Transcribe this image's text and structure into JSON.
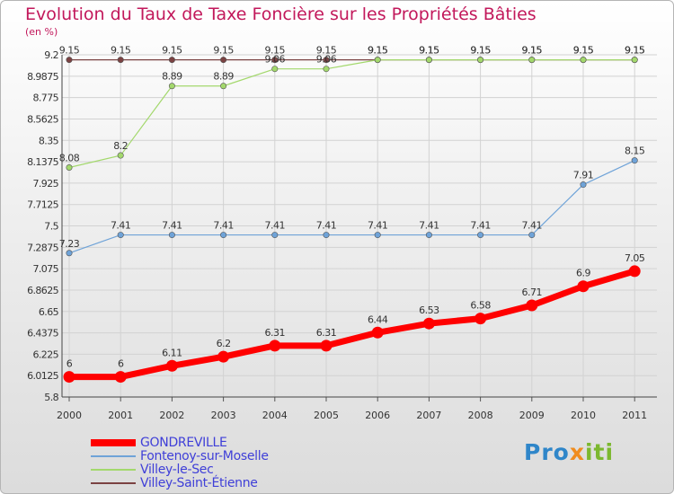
{
  "chart_data": {
    "type": "line",
    "title": "Evolution du Taux de Taxe Foncière sur les Propriétés Bâties",
    "ylabel": "(en %)",
    "xlabel": "",
    "ylim": [
      5.8,
      9.2
    ],
    "yticks": [
      "9.2",
      "8.9875",
      "8.775",
      "8.5625",
      "8.35",
      "8.1375",
      "7.925",
      "7.7125",
      "7.5",
      "7.2875",
      "7.075",
      "6.8625",
      "6.65",
      "6.4375",
      "6.225",
      "6.0125",
      "5.8"
    ],
    "categories": [
      "2000",
      "2001",
      "2002",
      "2003",
      "2004",
      "2005",
      "2006",
      "2007",
      "2008",
      "2009",
      "2010",
      "2011"
    ],
    "series": [
      {
        "name": "GONDREVILLE",
        "color": "#ff0000",
        "values": [
          6,
          6,
          6.11,
          6.2,
          6.31,
          6.31,
          6.44,
          6.53,
          6.58,
          6.71,
          6.9,
          7.05
        ]
      },
      {
        "name": "Fontenoy-sur-Moselle",
        "color": "#6fa3d8",
        "values": [
          7.23,
          7.41,
          7.41,
          7.41,
          7.41,
          7.41,
          7.41,
          7.41,
          7.41,
          7.41,
          7.91,
          8.15
        ]
      },
      {
        "name": "Villey-le-Sec",
        "color": "#a3d86c",
        "values": [
          8.08,
          8.2,
          8.89,
          8.89,
          9.06,
          9.06,
          9.15,
          9.15,
          9.15,
          9.15,
          9.15,
          9.15
        ]
      },
      {
        "name": "Villey-Saint-Étienne",
        "color": "#7b4242",
        "values": [
          9.15,
          9.15,
          9.15,
          9.15,
          9.15,
          9.15,
          9.15,
          9.15,
          9.15,
          9.15,
          9.15,
          9.15
        ]
      }
    ]
  },
  "legend": {
    "items": [
      "GONDREVILLE",
      "Fontenoy-sur-Moselle",
      "Villey-le-Sec",
      "Villey-Saint-Étienne"
    ]
  },
  "brand": {
    "part1": "Pro",
    "part2": "x",
    "part3": "iti"
  }
}
